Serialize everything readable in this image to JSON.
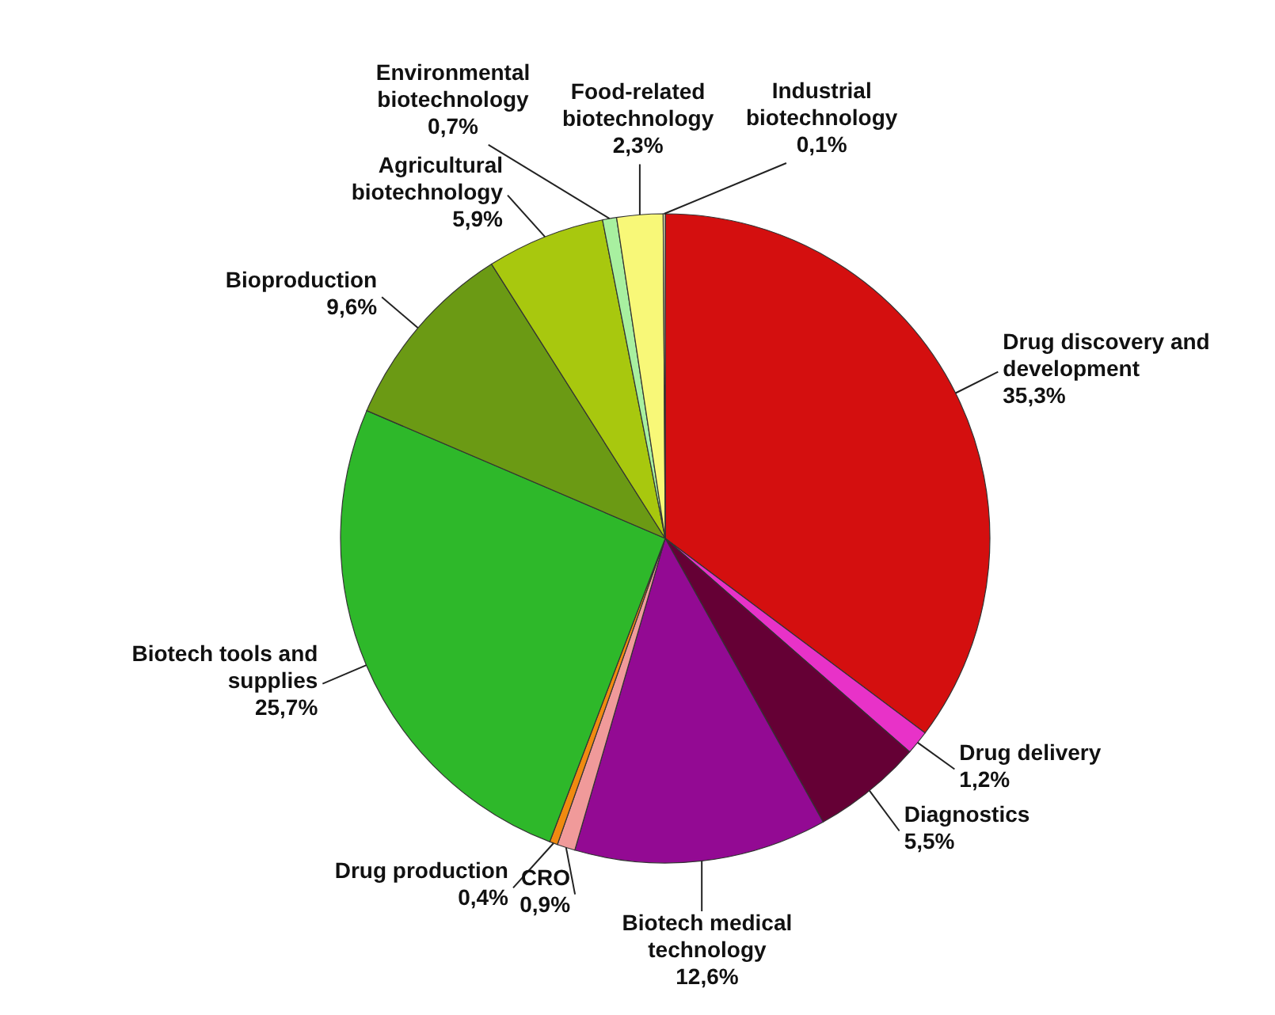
{
  "chart_data": {
    "type": "pie",
    "categories": [
      "Drug discovery and development",
      "Drug delivery",
      "Diagnostics",
      "Biotech medical technology",
      "CRO",
      "Drug production",
      "Biotech tools and supplies",
      "Bioproduction",
      "Agricultural biotechnology",
      "Environmental biotechnology",
      "Food-related biotechnology",
      "Industrial biotechnology"
    ],
    "values": [
      35.3,
      1.2,
      5.5,
      12.6,
      0.9,
      0.4,
      25.7,
      9.6,
      5.9,
      0.7,
      2.3,
      0.1
    ],
    "value_labels": [
      "35,3%",
      "1,2%",
      "5,5%",
      "12,6%",
      "0,9%",
      "0,4%",
      "25,7%",
      "9,6%",
      "5,9%",
      "0,7%",
      "2,3%",
      "0,1%"
    ],
    "colors": [
      "#d40f0f",
      "#e832c8",
      "#650035",
      "#930a93",
      "#f09a9a",
      "#f08a10",
      "#2eb82a",
      "#6b9a14",
      "#a8c80e",
      "#a8f0a0",
      "#f8f878",
      "#f4f4c8"
    ]
  }
}
